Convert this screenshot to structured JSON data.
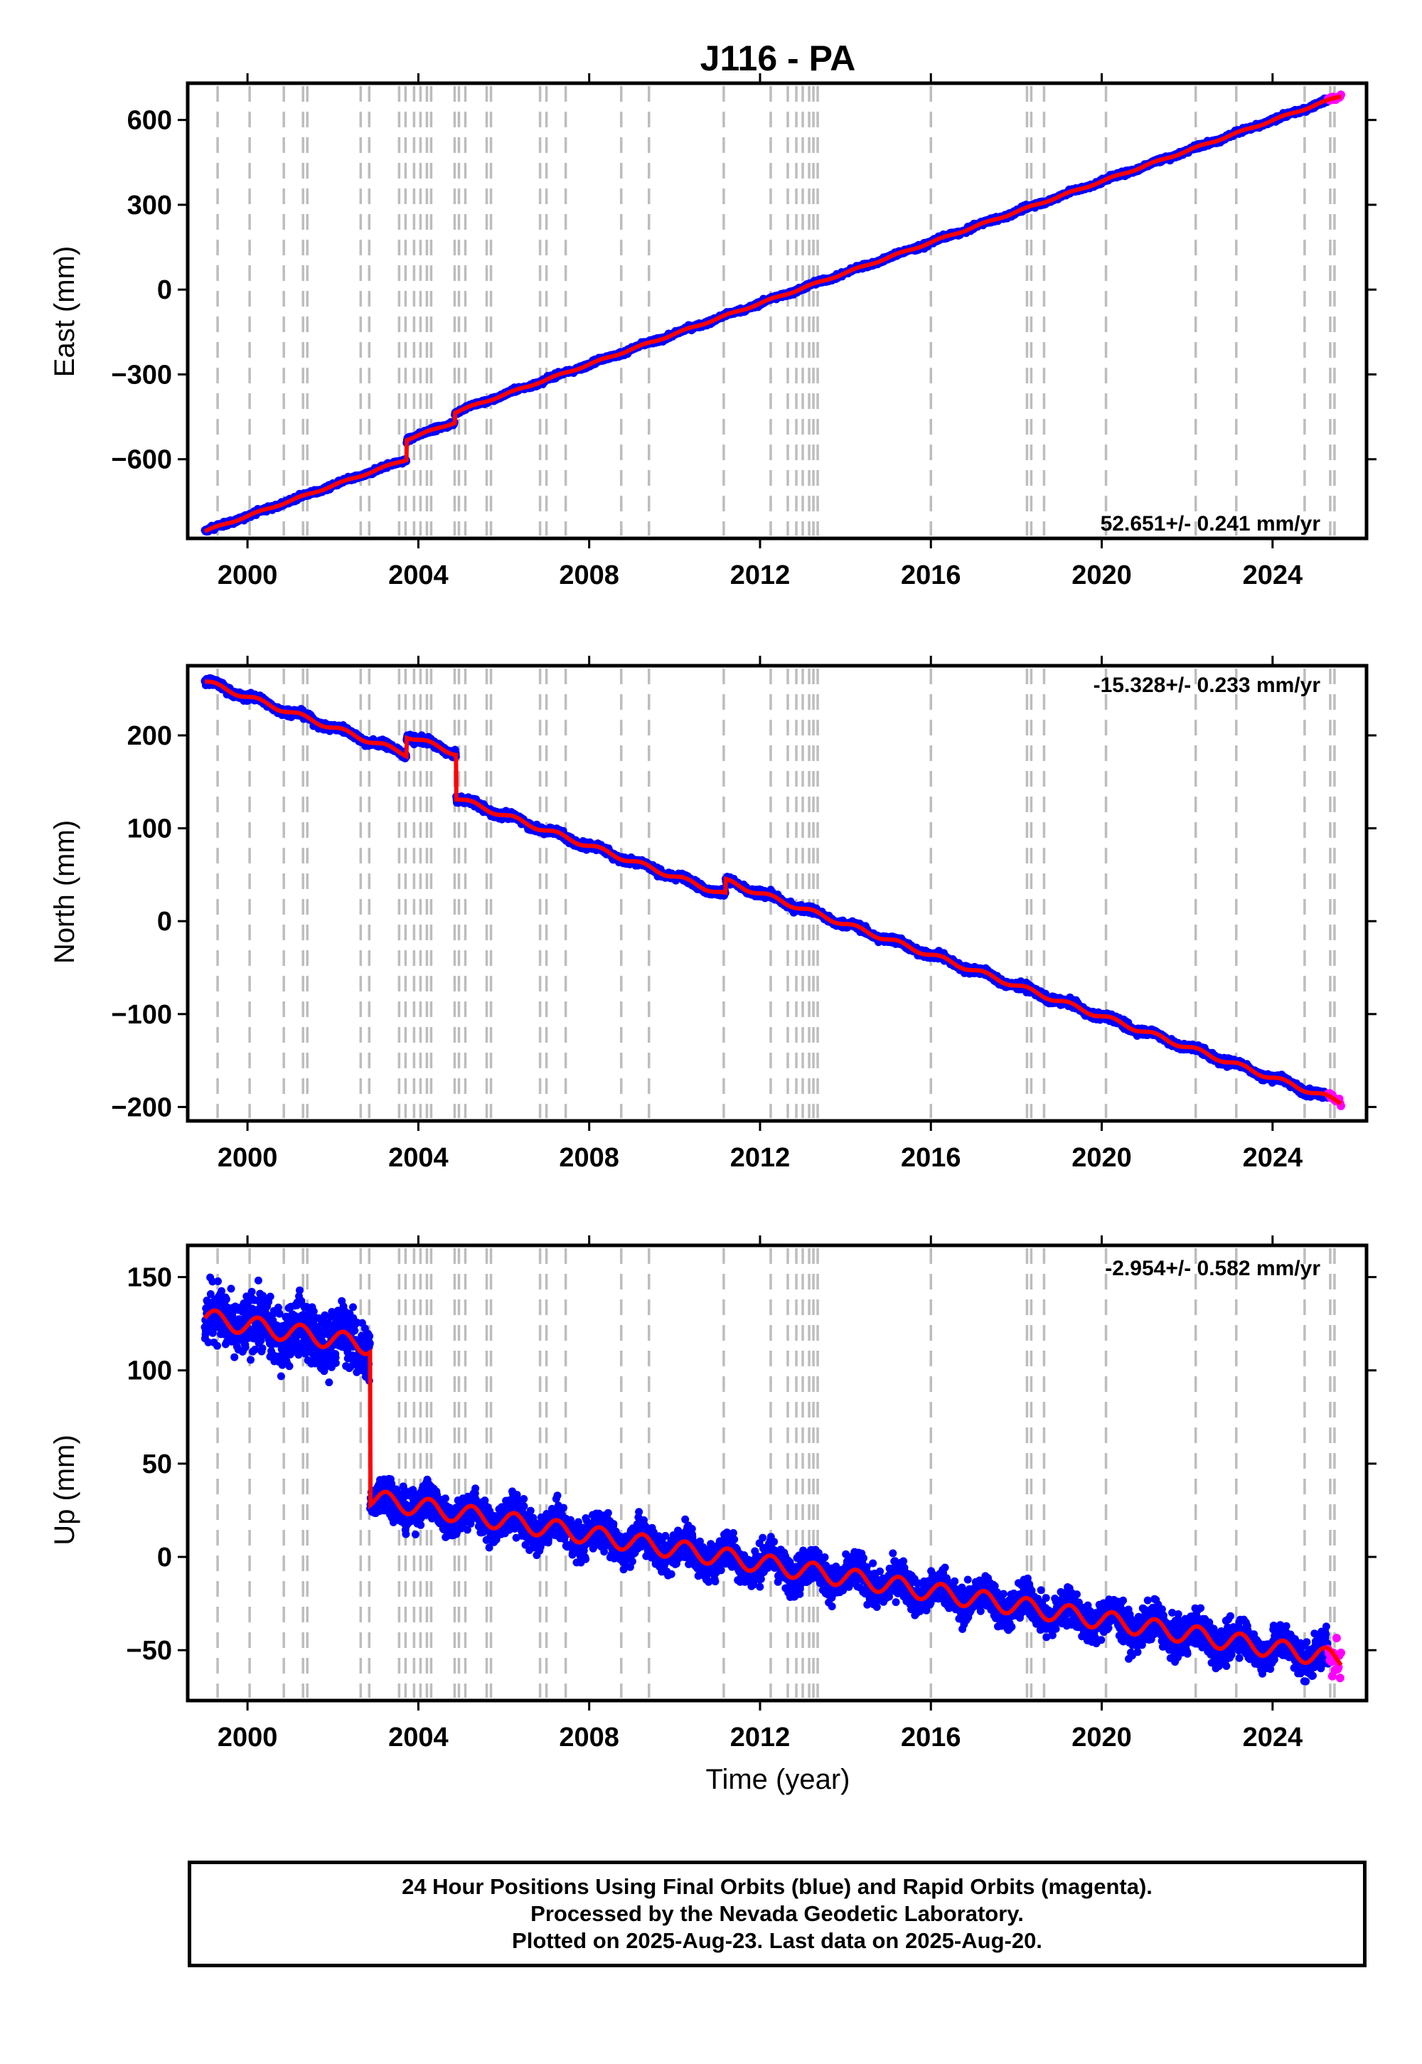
{
  "title": "J116 - PA",
  "colors": {
    "final": "#0000ff",
    "rapid": "#ff00ff",
    "model": "#ff0000",
    "event": "#bdbdbd"
  },
  "x_ticks": [
    2000,
    2004,
    2008,
    2012,
    2016,
    2020,
    2024
  ],
  "xlabel": "Time (year)",
  "events": [
    1999.3,
    2000.05,
    2000.85,
    2001.3,
    2001.4,
    2002.65,
    2002.85,
    2003.55,
    2003.7,
    2003.9,
    2004.05,
    2004.2,
    2004.3,
    2004.85,
    2004.95,
    2005.1,
    2005.6,
    2005.7,
    2006.85,
    2007.0,
    2007.45,
    2008.75,
    2009.4,
    2011.15,
    2012.25,
    2012.65,
    2012.85,
    2013.0,
    2013.15,
    2013.25,
    2013.35,
    2016.0,
    2018.25,
    2018.35,
    2018.65,
    2020.1,
    2022.2,
    2023.15,
    2024.75,
    2025.35,
    2025.45
  ],
  "caption": {
    "line1": "24 Hour Positions Using Final Orbits (blue) and Rapid Orbits (magenta).",
    "line2": "Processed by the Nevada Geodetic Laboratory.",
    "line3": "Plotted on 2025-Aug-23. Last data on 2025-Aug-20."
  },
  "chart_data": [
    {
      "type": "scatter",
      "component": "east",
      "ylabel": "East (mm)",
      "rate_label": "52.651+/- 0.241 mm/yr",
      "xlim": [
        1998.6,
        2026.2
      ],
      "ylim": [
        -880,
        730
      ],
      "y_ticks": [
        600,
        300,
        0,
        -300,
        -600
      ],
      "y_tick_labels": [
        "600",
        "300",
        "0",
        "−300",
        "−600"
      ],
      "start": [
        1999.0,
        -855
      ],
      "steps": [
        [
          2003.72,
          70
        ],
        [
          2004.85,
          35
        ]
      ],
      "end": [
        2025.6,
        685
      ],
      "scatter_sd": 4,
      "series": [
        {
          "name": "final",
          "x": [
            1999.0,
            2003.7,
            2003.75,
            2004.8,
            2004.9,
            2025.3
          ],
          "y": [
            -855,
            -610,
            -545,
            -490,
            -445,
            672
          ]
        },
        {
          "name": "rapid",
          "x": [
            2025.3,
            2025.6
          ],
          "y": [
            672,
            685
          ]
        },
        {
          "name": "model",
          "x": [
            1999.0,
            2003.7,
            2003.75,
            2004.8,
            2004.9,
            2025.6
          ],
          "y": [
            -855,
            -610,
            -545,
            -490,
            -445,
            685
          ]
        }
      ]
    },
    {
      "type": "scatter",
      "component": "north",
      "ylabel": "North (mm)",
      "rate_label": "-15.328+/- 0.233 mm/yr",
      "xlim": [
        1998.6,
        2026.2
      ],
      "ylim": [
        -215,
        275
      ],
      "y_ticks": [
        200,
        100,
        0,
        -100,
        -200
      ],
      "y_tick_labels": [
        "200",
        "100",
        "0",
        "−100",
        "−200"
      ],
      "start": [
        1999.0,
        258
      ],
      "steps": [
        [
          2003.72,
          20
        ],
        [
          2004.88,
          -48
        ],
        [
          2011.19,
          15
        ]
      ],
      "end": [
        2025.6,
        -195
      ],
      "scatter_sd": 2,
      "series": [
        {
          "name": "final",
          "x": [
            1999.0,
            2003.7,
            2003.75,
            2004.85,
            2004.9,
            2011.15,
            2011.2,
            2025.3
          ],
          "y": [
            258,
            168,
            185,
            155,
            108,
            -8,
            10,
            -194
          ]
        },
        {
          "name": "rapid",
          "x": [
            2025.3,
            2025.6
          ],
          "y": [
            -194,
            -195
          ]
        },
        {
          "name": "model",
          "x": [
            1999.0,
            2003.7,
            2003.75,
            2004.85,
            2004.9,
            2011.15,
            2011.2,
            2025.6
          ],
          "y": [
            258,
            168,
            185,
            155,
            108,
            -8,
            10,
            -195
          ]
        }
      ]
    },
    {
      "type": "scatter",
      "component": "up",
      "ylabel": "Up (mm)",
      "rate_label": "-2.954+/- 0.582 mm/yr",
      "xlim": [
        1998.6,
        2026.2
      ],
      "ylim": [
        -77,
        167
      ],
      "y_ticks": [
        150,
        100,
        50,
        0,
        -50
      ],
      "y_tick_labels": [
        "150",
        "100",
        "50",
        "0",
        "−50"
      ],
      "start": [
        1999.0,
        128
      ],
      "steps": [
        [
          2002.87,
          -82
        ]
      ],
      "end": [
        2025.6,
        -55
      ],
      "scatter_sd": 5,
      "series": [
        {
          "name": "final",
          "x": [
            1999.0,
            2002.85,
            2002.9,
            2025.3
          ],
          "y": [
            128,
            100,
            20,
            -52
          ]
        },
        {
          "name": "rapid",
          "x": [
            2025.3,
            2025.6
          ],
          "y": [
            -52,
            -55
          ]
        },
        {
          "name": "model",
          "x": [
            1999.0,
            2002.85,
            2002.9,
            2025.6
          ],
          "y": [
            128,
            100,
            20,
            -55
          ]
        }
      ]
    }
  ]
}
